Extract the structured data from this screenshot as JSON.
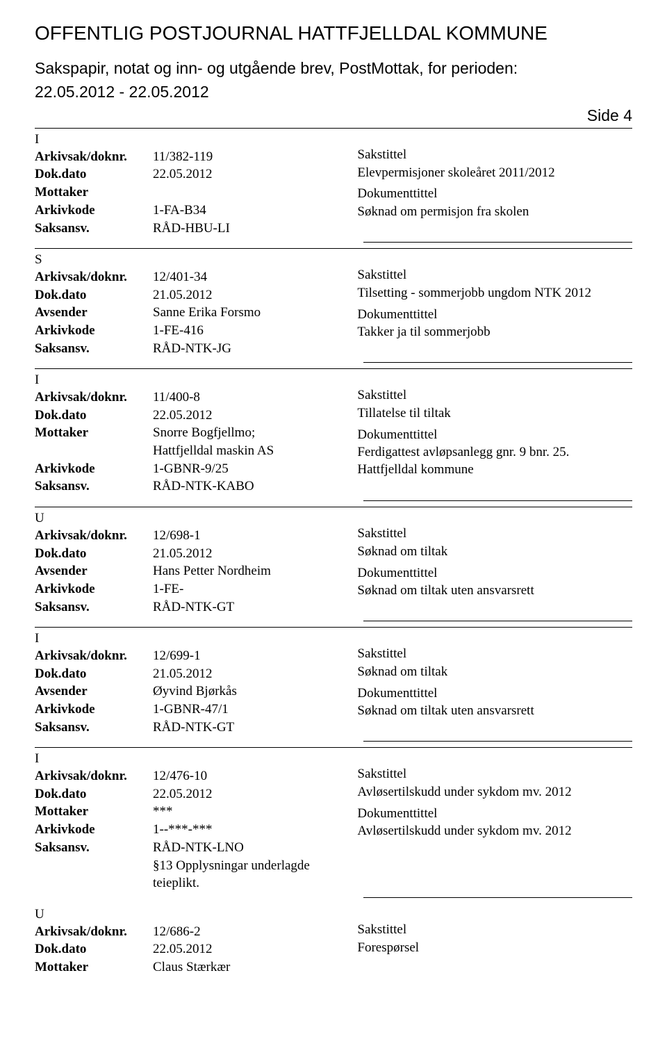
{
  "header": {
    "title": "OFFENTLIG POSTJOURNAL HATTFJELLDAL KOMMUNE",
    "subtitle_line1": "Sakspapir, notat og inn- og utgående brev, PostMottak, for perioden:",
    "subtitle_line2": "22.05.2012 - 22.05.2012",
    "side": "Side 4"
  },
  "labels": {
    "arkivsak": "Arkivsak/doknr.",
    "dokdato": "Dok.dato",
    "mottaker": "Mottaker",
    "avsender": "Avsender",
    "arkivkode": "Arkivkode",
    "saksansv": "Saksansv.",
    "sakstittel": "Sakstittel",
    "dokumenttittel": "Dokumenttittel"
  },
  "records": [
    {
      "type": "I",
      "arkivsak": "11/382-119",
      "dokdato": "22.05.2012",
      "party_label": "Mottaker",
      "party": "",
      "arkivkode": "1-FA-B34",
      "saksansv": "RÅD-HBU-LI",
      "sakstittel": "Elevpermisjoner skoleåret 2011/2012",
      "doktittel": "Søknad om permisjon fra skolen",
      "extra": []
    },
    {
      "type": "S",
      "arkivsak": "12/401-34",
      "dokdato": "21.05.2012",
      "party_label": "Avsender",
      "party": "Sanne Erika Forsmo",
      "arkivkode": "1-FE-416",
      "saksansv": "RÅD-NTK-JG",
      "sakstittel": "Tilsetting - sommerjobb ungdom NTK 2012",
      "doktittel": "Takker ja til sommerjobb",
      "extra": []
    },
    {
      "type": "I",
      "arkivsak": "11/400-8",
      "dokdato": "22.05.2012",
      "party_label": "Mottaker",
      "party": "Snorre Bogfjellmo;",
      "party2": "Hattfjelldal maskin AS",
      "arkivkode": "1-GBNR-9/25",
      "saksansv": "RÅD-NTK-KABO",
      "sakstittel": "Tillatelse til tiltak",
      "doktittel": "Ferdigattest avløpsanlegg gnr. 9 bnr. 25. Hattfjelldal kommune",
      "extra": []
    },
    {
      "type": "U",
      "arkivsak": "12/698-1",
      "dokdato": "21.05.2012",
      "party_label": "Avsender",
      "party": "Hans Petter Nordheim",
      "arkivkode": "1-FE-",
      "saksansv": "RÅD-NTK-GT",
      "sakstittel": "Søknad om tiltak",
      "doktittel": "Søknad om tiltak uten ansvarsrett",
      "extra": []
    },
    {
      "type": "I",
      "arkivsak": "12/699-1",
      "dokdato": "21.05.2012",
      "party_label": "Avsender",
      "party": "Øyvind Bjørkås",
      "arkivkode": "1-GBNR-47/1",
      "saksansv": "RÅD-NTK-GT",
      "sakstittel": "Søknad om tiltak",
      "doktittel": "Søknad om tiltak uten ansvarsrett",
      "extra": []
    },
    {
      "type": "I",
      "arkivsak": "12/476-10",
      "dokdato": "22.05.2012",
      "party_label": "Mottaker",
      "party": "***",
      "arkivkode": "1--***-***",
      "saksansv": "RÅD-NTK-LNO",
      "sakstittel": "Avløsertilskudd under sykdom mv. 2012",
      "doktittel": "Avløsertilskudd under sykdom mv. 2012",
      "extra": [
        "§13 Opplysningar underlagde",
        "teieplikt."
      ]
    }
  ],
  "trailing": {
    "type": "U",
    "arkivsak": "12/686-2",
    "dokdato": "22.05.2012",
    "party_label": "Mottaker",
    "party": "Claus Stærkær",
    "sakstittel": "Forespørsel"
  }
}
